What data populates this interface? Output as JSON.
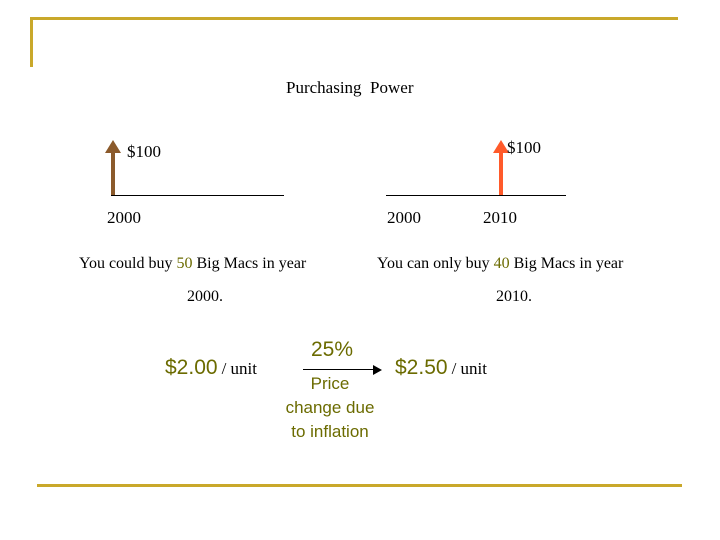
{
  "title": "Purchasing  Power",
  "left": {
    "amount": "$100",
    "year": "2000",
    "line1_before": "You could buy ",
    "line1_count": "50",
    "line1_after": " Big Macs in year",
    "line2": "2000.",
    "price": "$2.00",
    "unit": "/ unit"
  },
  "right": {
    "amount": "$100",
    "year_start": "2000",
    "year_end": "2010",
    "line1_before": "You can only buy ",
    "line1_count": "40",
    "line1_after": " Big Macs in year",
    "line2": "2010.",
    "price": "$2.50",
    "unit": "/ unit"
  },
  "middle": {
    "percent": "25%",
    "caption_line1": "Price",
    "caption_line2": "change due",
    "caption_line3": "to inflation"
  },
  "colors": {
    "frame": "#c9a82a",
    "accent_text": "#6b6b00",
    "left_arrow": "#8b5a2b",
    "right_arrow": "#ff5a2a"
  }
}
